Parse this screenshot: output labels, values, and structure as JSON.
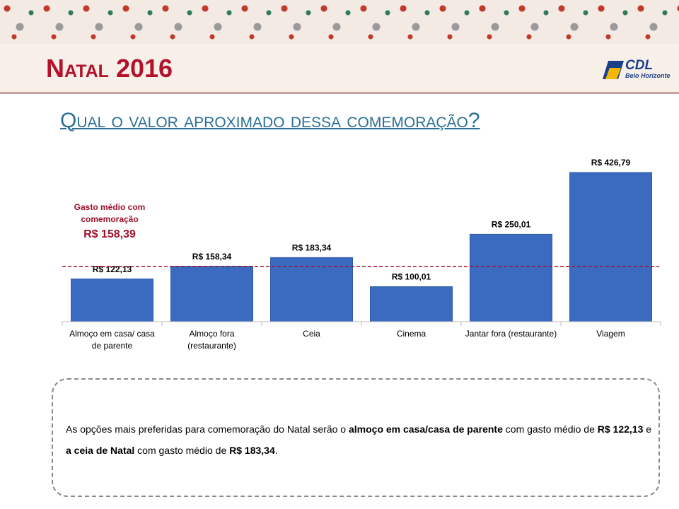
{
  "header": {
    "title": "Natal 2016",
    "logo": "CDL",
    "logo_subtitle": "Belo Horizonte"
  },
  "chart_data": {
    "type": "bar",
    "title": "Qual o valor aproximado dessa comemoração?",
    "categories": [
      "Almoço em casa/ casa de parente",
      "Almoço fora (restaurante)",
      "Ceia",
      "Cinema",
      "Jantar fora (restaurante)",
      "Viagem"
    ],
    "values": [
      122.13,
      158.34,
      183.34,
      100.01,
      250.01,
      426.79
    ],
    "value_labels": [
      "R$ 122,13",
      "R$ 158,34",
      "R$ 183,34",
      "R$ 100,01",
      "R$ 250,01",
      "R$ 426,79"
    ],
    "color": "#3a6bc0",
    "reference_line": {
      "value": 158.39,
      "label": "R$ 158,39",
      "annotation": "Gasto médio com comemoração",
      "color": "#a0102a"
    }
  },
  "note": {
    "segments": [
      {
        "text": "As opções mais preferidas para comemoração do Natal serão o ",
        "bold": false
      },
      {
        "text": "almoço em casa/casa de parente",
        "bold": true
      },
      {
        "text": " com gasto médio de ",
        "bold": false
      },
      {
        "text": "R$ 122,13",
        "bold": true
      },
      {
        "text": " e ",
        "bold": false
      },
      {
        "text": "a ceia de Natal",
        "bold": true
      },
      {
        "text": " com gasto médio de ",
        "bold": false
      },
      {
        "text": "R$ 183,34",
        "bold": true
      },
      {
        "text": ".",
        "bold": false
      }
    ]
  }
}
